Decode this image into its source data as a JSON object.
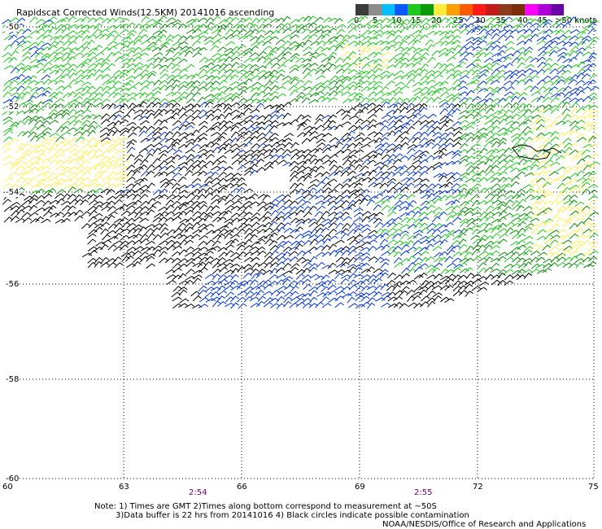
{
  "title": "Rapidscat Corrected Winds(12.5KM) 20141016 ascending",
  "legend": {
    "labels": [
      "0",
      "5",
      "10",
      "15",
      "20",
      "25",
      "30",
      "35",
      "40",
      "45",
      ">50 knots"
    ],
    "colors": [
      "#3c3c3c",
      "#8c8c8c",
      "#00bfff",
      "#0a5aff",
      "#1ec81e",
      "#0a9a0a",
      "#ffeb3b",
      "#ff9f00",
      "#ff5a00",
      "#ff1a1a",
      "#c21a1a",
      "#8b3a1a",
      "#7a2e0e",
      "#ff00ff",
      "#b000d8",
      "#6a00a8"
    ]
  },
  "axes": {
    "longitudes": [
      "60",
      "63",
      "66",
      "69",
      "72",
      "75"
    ],
    "latitudes": [
      "-50",
      "-52",
      "-54",
      "-56",
      "-58",
      "-60"
    ]
  },
  "times": [
    {
      "label": "2:54"
    },
    {
      "label": "2:55"
    }
  ],
  "notes": {
    "line1": "Note: 1) Times are GMT 2)Times along bottom correspond to measurement at ~50S",
    "line2": "3)Data buffer is 22 hrs from 20141016 4) Black circles indicate possible contamination",
    "credit": "NOAA/NESDIS/Office of Research and Applications"
  },
  "wind_colors": {
    "lt10": "#000000",
    "10to15": "#0033dd",
    "15to20": "#1ec81e",
    "20to25": "#0a8a0a",
    "25to30": "#ffee55"
  }
}
